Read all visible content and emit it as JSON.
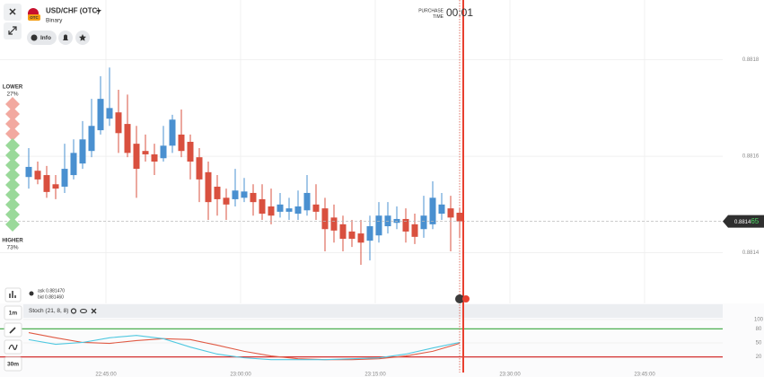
{
  "header": {
    "asset": "USD/CHF (OTC)",
    "mode": "Binary",
    "info": "Info",
    "flag_badge": "OTC"
  },
  "sidebar": {
    "lower": "LOWER",
    "lower_pct": "27%",
    "higher": "HIGHER",
    "higher_pct": "73%"
  },
  "quote": {
    "ask": "ask 0.881470",
    "bid": "bid 0.881460"
  },
  "timeframes": [
    "1m",
    "30m"
  ],
  "purchase": {
    "label": [
      "PURCHASE",
      "TIME"
    ],
    "countdown": "00:01"
  },
  "chart_data": [
    {
      "type": "candlestick",
      "x": [
        0,
        1,
        2,
        3,
        4,
        5,
        6,
        7,
        8,
        9,
        10,
        11,
        12,
        13,
        14,
        15,
        16,
        17,
        18,
        19,
        20,
        21,
        22,
        23,
        24,
        25,
        26,
        27,
        28,
        29,
        30,
        31,
        32,
        33,
        34,
        35,
        36,
        37,
        38,
        39,
        40,
        41,
        42,
        43,
        44,
        45,
        46,
        47,
        48
      ],
      "open": [
        0.881557,
        0.88157,
        0.881561,
        0.881542,
        0.881537,
        0.881561,
        0.881585,
        0.881611,
        0.881654,
        0.881678,
        0.881691,
        0.881667,
        0.881626,
        0.881611,
        0.881604,
        0.881596,
        0.881622,
        0.881645,
        0.88163,
        0.881598,
        0.881567,
        0.881537,
        0.881514,
        0.881511,
        0.881514,
        0.881524,
        0.881511,
        0.881496,
        0.881485,
        0.881485,
        0.881481,
        0.881488,
        0.8815,
        0.881492,
        0.881473,
        0.881459,
        0.881444,
        0.88144,
        0.881425,
        0.881436,
        0.881455,
        0.881462,
        0.88147,
        0.881459,
        0.881449,
        0.881459,
        0.881481,
        0.881492,
        0.881483
      ],
      "high": [
        0.881617,
        0.881589,
        0.88158,
        0.881561,
        0.881626,
        0.881635,
        0.881673,
        0.881719,
        0.881766,
        0.881784,
        0.881738,
        0.881728,
        0.881663,
        0.881645,
        0.881626,
        0.881663,
        0.881686,
        0.881697,
        0.881645,
        0.881617,
        0.881589,
        0.881561,
        0.881533,
        0.881574,
        0.881555,
        0.881542,
        0.881542,
        0.881533,
        0.881524,
        0.881514,
        0.881529,
        0.881561,
        0.881542,
        0.881514,
        0.8815,
        0.881477,
        0.881468,
        0.881468,
        0.881477,
        0.881505,
        0.881505,
        0.881496,
        0.881492,
        0.881481,
        0.881518,
        0.881548,
        0.881524,
        0.881518,
        0.881492
      ],
      "low": [
        0.881533,
        0.881542,
        0.881514,
        0.881511,
        0.881524,
        0.881552,
        0.881574,
        0.881598,
        0.881645,
        0.881663,
        0.881607,
        0.881598,
        0.881514,
        0.881589,
        0.881561,
        0.881589,
        0.881607,
        0.881598,
        0.881552,
        0.881505,
        0.881468,
        0.881477,
        0.881468,
        0.881496,
        0.881505,
        0.881477,
        0.881468,
        0.881459,
        0.881473,
        0.881468,
        0.881468,
        0.881477,
        0.881468,
        0.881403,
        0.881421,
        0.881403,
        0.881412,
        0.881375,
        0.881384,
        0.881421,
        0.88144,
        0.881449,
        0.881421,
        0.881418,
        0.881431,
        0.881449,
        0.881468,
        0.881403,
        0.881431
      ],
      "close": [
        0.881578,
        0.881552,
        0.881526,
        0.881533,
        0.881574,
        0.881607,
        0.881635,
        0.881663,
        0.881719,
        0.8817,
        0.881648,
        0.881607,
        0.881574,
        0.881604,
        0.881589,
        0.881622,
        0.881676,
        0.881611,
        0.881589,
        0.881552,
        0.881505,
        0.881511,
        0.8815,
        0.881529,
        0.881527,
        0.881505,
        0.881481,
        0.881477,
        0.8815,
        0.881492,
        0.881496,
        0.881524,
        0.881485,
        0.881449,
        0.881446,
        0.881429,
        0.881429,
        0.881421,
        0.881455,
        0.881477,
        0.881477,
        0.88147,
        0.881444,
        0.881433,
        0.881477,
        0.881514,
        0.8815,
        0.881473,
        0.881465
      ],
      "up_color": "#4a90d0",
      "down_color": "#d9503f",
      "xlim": [
        -3.2,
        77.3
      ],
      "xticks": [
        {
          "value": 8.6,
          "label": "22:45:00"
        },
        {
          "value": 23.6,
          "label": "23:00:00"
        },
        {
          "value": 38.6,
          "label": "23:15:00"
        },
        {
          "value": 53.6,
          "label": "23:30:00"
        },
        {
          "value": 68.6,
          "label": "23:45:00"
        }
      ],
      "ylim": [
        0.881295,
        0.881924
      ],
      "yticks": [
        0.8814,
        0.8816,
        0.8818
      ],
      "grid": true,
      "current_price": 0.881465,
      "current_price_label": [
        "0.8814",
        "65"
      ]
    },
    {
      "type": "line",
      "title": "Stoch (21, 8, 8)",
      "x": [
        0,
        3,
        6,
        9,
        12,
        15,
        18,
        21,
        24,
        27,
        30,
        33,
        36,
        39,
        42,
        45,
        48
      ],
      "xlim": [
        -3.2,
        77.3
      ],
      "series": [
        {
          "color": "#e05a44",
          "values": [
            72,
            61,
            51,
            49,
            55,
            59,
            57,
            45,
            32,
            22,
            16,
            14,
            14,
            16,
            22,
            32,
            49
          ]
        },
        {
          "color": "#4fc8e0",
          "values": [
            57,
            47,
            51,
            61,
            66,
            59,
            41,
            26,
            18,
            14,
            14,
            14,
            16,
            18,
            26,
            39,
            51
          ]
        }
      ],
      "ylim": [
        0,
        100
      ],
      "yticks": [
        20,
        50,
        80,
        100
      ],
      "levels": [
        {
          "value": 80,
          "color": "#4caf50"
        },
        {
          "value": 20,
          "color": "#d32f2f"
        }
      ]
    }
  ]
}
